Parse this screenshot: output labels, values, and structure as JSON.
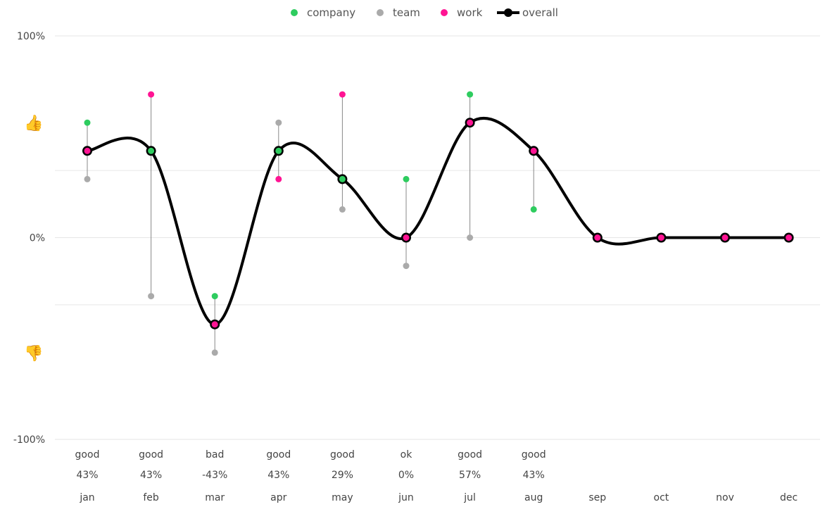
{
  "chart_data": {
    "type": "line",
    "categories": [
      "jan",
      "feb",
      "mar",
      "apr",
      "may",
      "jun",
      "jul",
      "aug",
      "sep",
      "oct",
      "nov",
      "dec"
    ],
    "ylim": [
      -100,
      100
    ],
    "y_ticks": [
      {
        "value": 100,
        "label": "100%"
      },
      {
        "value": 0,
        "label": "0%"
      },
      {
        "value": -100,
        "label": "-100%"
      }
    ],
    "grid": true,
    "legend_position": "top-center",
    "series": [
      {
        "name": "company",
        "color": "#2ecc5f",
        "style": "point",
        "values": [
          57,
          43,
          -29,
          43,
          29,
          29,
          71,
          14,
          null,
          null,
          null,
          null
        ]
      },
      {
        "name": "team",
        "color": "#aaaaaa",
        "style": "point",
        "values": [
          29,
          -29,
          -57,
          57,
          14,
          -14,
          0,
          null,
          null,
          null,
          null,
          null
        ]
      },
      {
        "name": "work",
        "color": "#ff1493",
        "style": "point",
        "values": [
          43,
          71,
          -43,
          29,
          71,
          0,
          57,
          43,
          0,
          0,
          0,
          0
        ]
      },
      {
        "name": "overall",
        "color": "#000000",
        "style": "line",
        "values": [
          43,
          43,
          -43,
          43,
          29,
          0,
          57,
          43,
          0,
          0,
          0,
          0
        ]
      }
    ],
    "mood_labels": [
      "good",
      "good",
      "bad",
      "good",
      "good",
      "ok",
      "good",
      "good",
      "",
      "",
      "",
      ""
    ],
    "percent_labels": [
      "43%",
      "43%",
      "-43%",
      "43%",
      "29%",
      "0%",
      "57%",
      "43%",
      "",
      "",
      "",
      ""
    ],
    "emoji_up": "👍",
    "emoji_down": "👎"
  }
}
